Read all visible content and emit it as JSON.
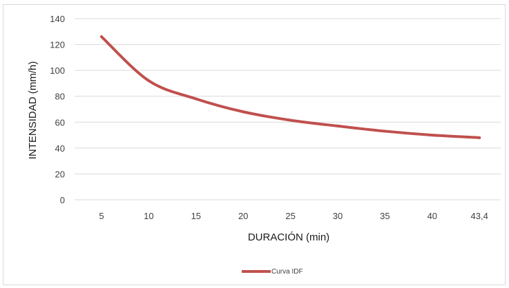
{
  "chart_data": {
    "type": "line",
    "x": [
      "5",
      "10",
      "15",
      "20",
      "25",
      "30",
      "35",
      "40",
      "43,4"
    ],
    "series": [
      {
        "name": "Curva IDF",
        "color": "#c0504d",
        "values": [
          126,
          92,
          78,
          68,
          61.5,
          57,
          53,
          50,
          48
        ]
      }
    ],
    "xlabel": "DURACIÓN (min)",
    "ylabel": "INTENSIDAD (mm/h)",
    "ylim": [
      0,
      140
    ],
    "yticks": [
      0,
      20,
      40,
      60,
      80,
      100,
      120,
      140
    ],
    "grid": true,
    "legend": "bottom",
    "colors": {
      "grid": "#d9d9d9",
      "text": "#404040"
    }
  }
}
